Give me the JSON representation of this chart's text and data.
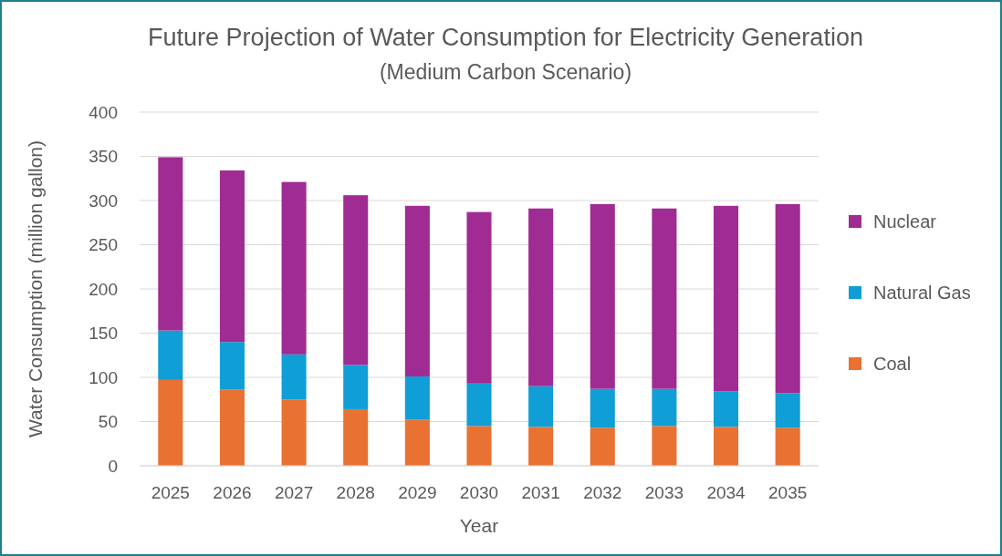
{
  "chart_data": {
    "type": "bar",
    "title": "Future Projection of Water Consumption for Electricity Generation",
    "subtitle": "(Medium Carbon Scenario)",
    "xlabel": "Year",
    "ylabel": "Water Consumption (million gallon)",
    "categories": [
      "2025",
      "2026",
      "2027",
      "2028",
      "2029",
      "2030",
      "2031",
      "2032",
      "2033",
      "2034",
      "2035"
    ],
    "stacked": true,
    "series": [
      {
        "name": "Coal",
        "color": "#e97132",
        "values": [
          97,
          86,
          75,
          64,
          52,
          45,
          44,
          43,
          45,
          44,
          43
        ]
      },
      {
        "name": "Natural Gas",
        "color": "#0f9ed5",
        "values": [
          56,
          54,
          51,
          50,
          49,
          48,
          46,
          44,
          42,
          40,
          39
        ]
      },
      {
        "name": "Nuclear",
        "color": "#a02b93",
        "values": [
          196,
          194,
          195,
          192,
          193,
          194,
          201,
          209,
          204,
          210,
          214
        ]
      }
    ],
    "ylim": [
      0,
      400
    ],
    "yticks": [
      0,
      50,
      100,
      150,
      200,
      250,
      300,
      350,
      400
    ],
    "grid": "y",
    "legend": "right"
  }
}
